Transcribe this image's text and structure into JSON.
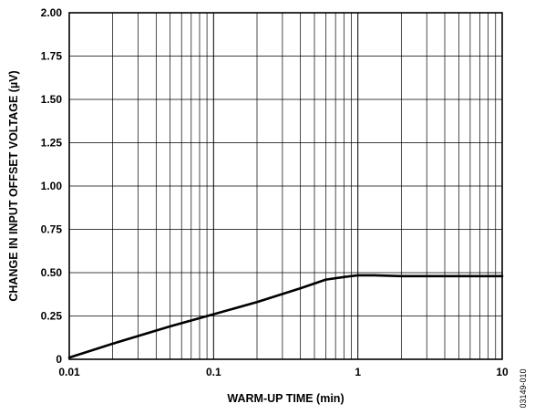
{
  "figure_id": "03149-010",
  "chart_data": {
    "type": "line",
    "xlabel": "WARM-UP TIME (min)",
    "ylabel": "CHANGE IN INPUT OFFSET VOLTAGE (µV)",
    "x_scale": "log",
    "xlim": [
      0.01,
      10
    ],
    "ylim": [
      0,
      2.0
    ],
    "grid": true,
    "x_tick_values": [
      0.01,
      0.1,
      1,
      10
    ],
    "x_tick_labels": [
      "0.01",
      "0.1",
      "1",
      "10"
    ],
    "y_tick_values": [
      0,
      0.25,
      0.5,
      0.75,
      1.0,
      1.25,
      1.5,
      1.75,
      2.0
    ],
    "y_tick_labels": [
      "0",
      "0.25",
      "0.50",
      "0.75",
      "1.00",
      "1.25",
      "1.50",
      "1.75",
      "2.00"
    ],
    "series": [
      {
        "x": [
          0.01,
          0.02,
          0.05,
          0.1,
          0.2,
          0.4,
          0.6,
          0.8,
          1.0,
          1.3,
          2,
          5,
          10
        ],
        "y": [
          0.01,
          0.09,
          0.19,
          0.26,
          0.33,
          0.41,
          0.46,
          0.475,
          0.485,
          0.485,
          0.48,
          0.48,
          0.48
        ],
        "color": "#000000"
      }
    ]
  }
}
